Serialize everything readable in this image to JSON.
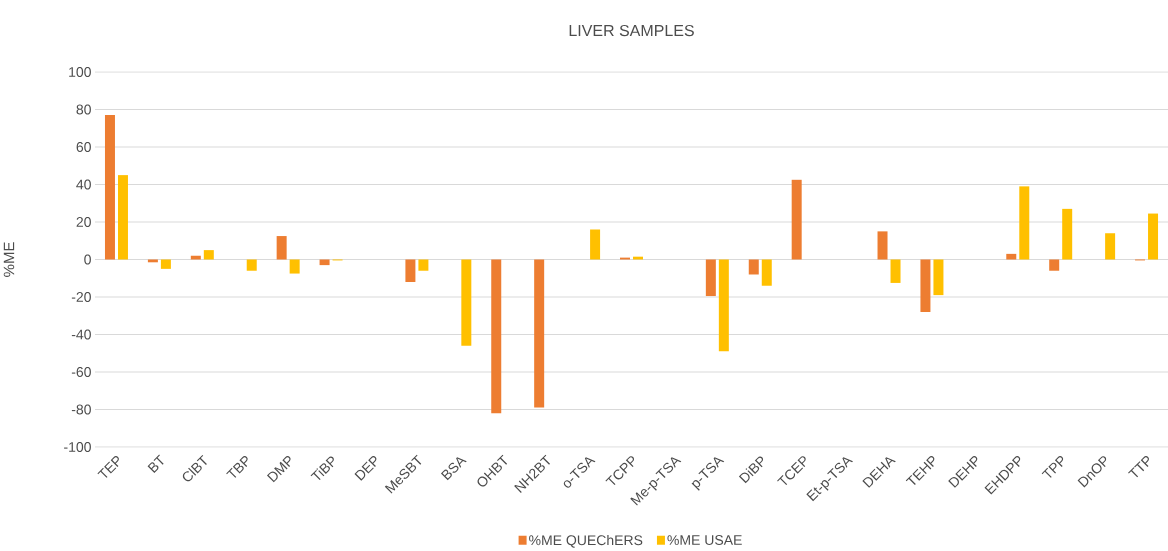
{
  "chart_data": {
    "type": "bar",
    "title": "LIVER SAMPLES",
    "ylabel": "%ME",
    "categories": [
      "TEP",
      "BT",
      "ClBT",
      "TBP",
      "DMP",
      "TiBP",
      "DEP",
      "MeSBT",
      "BSA",
      "OHBT",
      "NH2BT",
      "o-TSA",
      "TCPP",
      "Me-p-TSA",
      "p-TSA",
      "DiBP",
      "TCEP",
      "Et-p-TSA",
      "DEHA",
      "TEHP",
      "DEHP",
      "EHDPP",
      "TPP",
      "DnOP",
      "TTP"
    ],
    "series": [
      {
        "name": "%ME QUEChERS",
        "color": "#ed7d31",
        "values": [
          77,
          -1.5,
          2,
          null,
          12.5,
          -3,
          null,
          -12,
          null,
          -82,
          -79,
          null,
          1,
          null,
          -19.5,
          -8,
          42.5,
          null,
          15,
          -28,
          null,
          3,
          -6,
          null,
          -0.5
        ]
      },
      {
        "name": "%ME USAE",
        "color": "#ffc000",
        "values": [
          45,
          -5,
          5,
          -6,
          -7.5,
          -0.5,
          null,
          -6,
          -46,
          null,
          null,
          16,
          1.5,
          null,
          -49,
          -14,
          null,
          null,
          -12.5,
          -19,
          null,
          39,
          27,
          14,
          24.5
        ]
      }
    ],
    "ylim": [
      -100,
      100
    ],
    "yticks": [
      -100,
      -80,
      -60,
      -40,
      -20,
      0,
      20,
      40,
      60,
      80,
      100
    ],
    "grid": "y",
    "legend": "bottom"
  }
}
